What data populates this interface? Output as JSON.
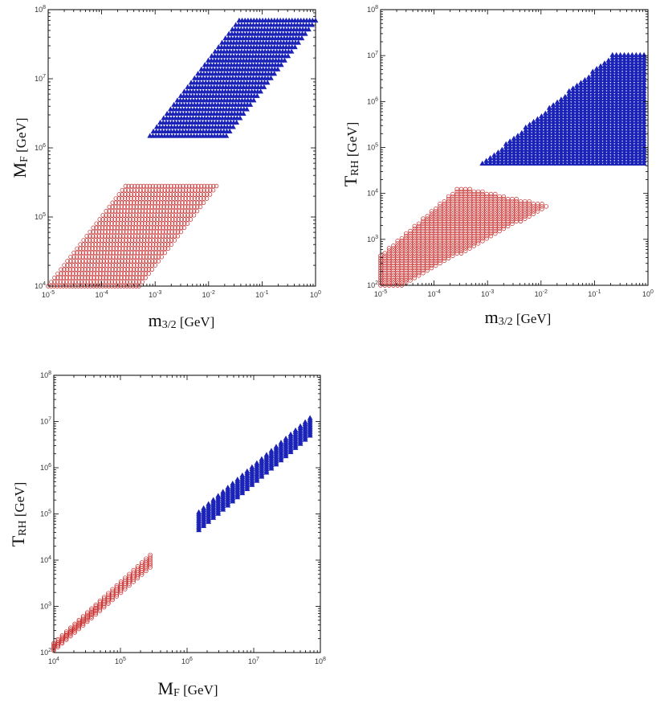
{
  "figure": {
    "panel_count": 3
  },
  "colors": {
    "blue": "#1a22b8",
    "red": "#c62424",
    "axis": "#000000"
  },
  "chart_data": [
    {
      "type": "scatter",
      "id": "p1",
      "title": "",
      "x_scale": "log",
      "y_scale": "log",
      "xlim": [
        1e-05,
        1
      ],
      "ylim": [
        10000.0,
        100000000.0
      ],
      "xlabel": {
        "main": "m",
        "sub": "3/2",
        "unit": " [GeV]"
      },
      "ylabel": {
        "main": "M",
        "sub": "F",
        "unit": " [GeV]"
      },
      "x_ticks": [
        {
          "base": "10",
          "exp": "-5"
        },
        {
          "base": "10",
          "exp": "-4"
        },
        {
          "base": "10",
          "exp": "-3"
        },
        {
          "base": "10",
          "exp": "-2"
        },
        {
          "base": "10",
          "exp": "-1"
        },
        {
          "base": "10",
          "exp": "0"
        }
      ],
      "y_ticks": [
        {
          "base": "10",
          "exp": "4"
        },
        {
          "base": "10",
          "exp": "5"
        },
        {
          "base": "10",
          "exp": "6"
        },
        {
          "base": "10",
          "exp": "7"
        },
        {
          "base": "10",
          "exp": "8"
        }
      ],
      "series": [
        {
          "name": "blue-triangles",
          "marker": "triangle",
          "color": "#1a22b8",
          "region": "band",
          "x_min": 0.0008,
          "x_max": 1,
          "y_min": 1500000.0,
          "y_max": 70000000.0,
          "slope": 1,
          "rows": 26,
          "cols": 26
        },
        {
          "name": "red-circles",
          "marker": "circle",
          "color": "#c62424",
          "region": "band",
          "x_min": 1e-05,
          "x_max": 0.014,
          "y_min": 10000.0,
          "y_max": 280000.0,
          "slope": 1,
          "rows": 24,
          "cols": 30
        }
      ]
    },
    {
      "type": "scatter",
      "id": "p2",
      "title": "",
      "x_scale": "log",
      "y_scale": "log",
      "xlim": [
        1e-05,
        1
      ],
      "ylim": [
        100.0,
        100000000.0
      ],
      "xlabel": {
        "main": "m",
        "sub": "3/2",
        "unit": " [GeV]"
      },
      "ylabel": {
        "main": "T",
        "sub": "RH",
        "unit": " [GeV]"
      },
      "x_ticks": [
        {
          "base": "10",
          "exp": "-5"
        },
        {
          "base": "10",
          "exp": "-4"
        },
        {
          "base": "10",
          "exp": "-3"
        },
        {
          "base": "10",
          "exp": "-2"
        },
        {
          "base": "10",
          "exp": "-1"
        },
        {
          "base": "10",
          "exp": "0"
        }
      ],
      "y_ticks": [
        {
          "base": "10",
          "exp": "2"
        },
        {
          "base": "10",
          "exp": "3"
        },
        {
          "base": "10",
          "exp": "4"
        },
        {
          "base": "10",
          "exp": "5"
        },
        {
          "base": "10",
          "exp": "6"
        },
        {
          "base": "10",
          "exp": "7"
        },
        {
          "base": "10",
          "exp": "8"
        }
      ],
      "series": [
        {
          "name": "blue-triangles",
          "marker": "triangle",
          "color": "#1a22b8",
          "region": "polygon",
          "polygon": [
            [
              0.0008,
              45000.0
            ],
            [
              0.25,
              12000000.0
            ],
            [
              1,
              12000000.0
            ],
            [
              1,
              45000.0
            ]
          ],
          "rows": 40,
          "cols": 42
        },
        {
          "name": "red-circles",
          "marker": "circle",
          "color": "#c62424",
          "region": "polygon",
          "polygon": [
            [
              1e-05,
              100.0
            ],
            [
              1e-05,
              450.0
            ],
            [
              0.0003,
              14000.0
            ],
            [
              0.015,
              5500.0
            ],
            [
              2.5e-05,
              100.0
            ]
          ],
          "rows": 40,
          "cols": 40
        }
      ]
    },
    {
      "type": "scatter",
      "id": "p3",
      "title": "",
      "x_scale": "log",
      "y_scale": "log",
      "xlim": [
        10000.0,
        100000000.0
      ],
      "ylim": [
        100.0,
        100000000.0
      ],
      "xlabel": {
        "main": "M",
        "sub": "F",
        "unit": " [GeV]"
      },
      "ylabel": {
        "main": "T",
        "sub": "RH",
        "unit": " [GeV]"
      },
      "x_ticks": [
        {
          "base": "10",
          "exp": "4"
        },
        {
          "base": "10",
          "exp": "5"
        },
        {
          "base": "10",
          "exp": "6"
        },
        {
          "base": "10",
          "exp": "7"
        },
        {
          "base": "10",
          "exp": "8"
        }
      ],
      "y_ticks": [
        {
          "base": "10",
          "exp": "2"
        },
        {
          "base": "10",
          "exp": "3"
        },
        {
          "base": "10",
          "exp": "4"
        },
        {
          "base": "10",
          "exp": "5"
        },
        {
          "base": "10",
          "exp": "6"
        },
        {
          "base": "10",
          "exp": "7"
        },
        {
          "base": "10",
          "exp": "8"
        }
      ],
      "series": [
        {
          "name": "blue-triangles",
          "marker": "triangle",
          "color": "#1a22b8",
          "region": "columns",
          "x_min": 1500000.0,
          "x_max": 70000000.0,
          "y_low_start": 45000.0,
          "y_high_start": 110000.0,
          "y_low_end": 5000000.0,
          "y_high_end": 12000000.0,
          "col_count": 24,
          "per_col": 11
        },
        {
          "name": "red-circles",
          "marker": "circle",
          "color": "#c62424",
          "region": "columns",
          "x_min": 10000.0,
          "x_max": 280000.0,
          "y_low_start": 110.0,
          "y_high_start": 160.0,
          "y_low_end": 7000.0,
          "y_high_end": 13000.0,
          "col_count": 24,
          "per_col": 7
        }
      ]
    }
  ]
}
